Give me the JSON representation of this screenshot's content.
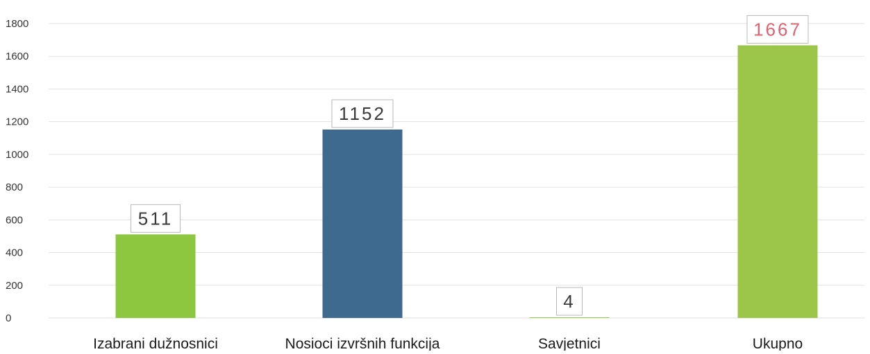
{
  "chart_data": {
    "type": "bar",
    "categories": [
      "Izabrani dužnosnici",
      "Nosioci izvršnih funkcija",
      "Savjetnici",
      "Ukupno"
    ],
    "values": [
      511,
      1152,
      4,
      1667
    ],
    "data_labels": [
      "511",
      "1152",
      "4",
      "1667"
    ],
    "colors": [
      "#8dc63f",
      "#3d6a8e",
      "#8dc63f",
      "#9cc64a"
    ],
    "label_colors": [
      "#3a3a3a",
      "#3a3a3a",
      "#3a3a3a",
      "#e06070"
    ],
    "ylim": [
      0,
      1800
    ],
    "yticks": [
      0,
      200,
      400,
      600,
      800,
      1000,
      1200,
      1400,
      1600,
      1800
    ],
    "grid": true,
    "title": "",
    "xlabel": "",
    "ylabel": ""
  }
}
